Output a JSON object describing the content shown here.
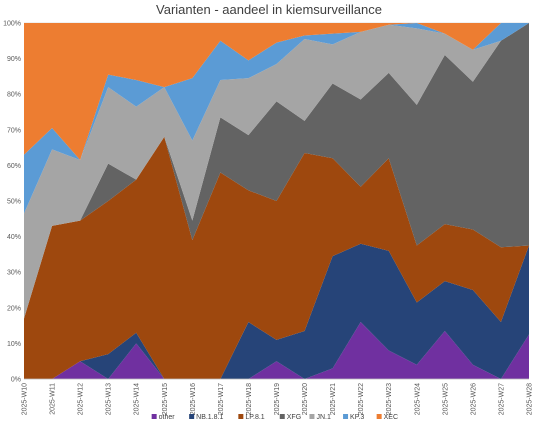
{
  "chart_data": {
    "type": "area",
    "stacked": true,
    "normalized": true,
    "title": "Varianten - aandeel in kiemsurveillance",
    "xlabel": "",
    "ylabel": "",
    "ylim": [
      0,
      100
    ],
    "y_ticks": [
      "0%",
      "10%",
      "20%",
      "30%",
      "40%",
      "50%",
      "60%",
      "70%",
      "80%",
      "90%",
      "100%"
    ],
    "grid": true,
    "legend_position": "bottom",
    "categories": [
      "2025-W10",
      "2025-W11",
      "2025-W12",
      "2025-W13",
      "2025-W14",
      "2025-W15",
      "2025-W16",
      "2025-W17",
      "2025-W18",
      "2025-W19",
      "2025-W20",
      "2025-W21",
      "2025-W22",
      "2025-W23",
      "2025-W24",
      "2025-W25",
      "2025-W26",
      "2025-W27",
      "2025-W28"
    ],
    "series": [
      {
        "name": "other",
        "color": "#7030A0",
        "values": [
          0,
          0,
          5,
          0,
          10,
          0,
          0,
          0,
          0,
          5,
          0,
          3,
          16,
          8,
          4,
          13.5,
          4,
          0,
          12.5
        ]
      },
      {
        "name": "NB.1.8.1",
        "color": "#264478",
        "values": [
          0,
          0,
          0,
          7,
          3,
          0,
          0,
          0,
          16,
          6,
          13.5,
          31.5,
          22,
          28,
          17.5,
          14,
          21,
          16,
          25
        ]
      },
      {
        "name": "LP.8.1",
        "color": "#9E480E",
        "values": [
          17,
          43,
          39.5,
          43,
          43,
          68,
          39,
          58,
          37,
          39,
          50,
          27.5,
          16,
          26,
          16,
          16,
          17,
          21,
          0
        ]
      },
      {
        "name": "XFG",
        "color": "#636363",
        "values": [
          0,
          0,
          0,
          10.5,
          0,
          0,
          5.5,
          15.5,
          15.5,
          28,
          9,
          21,
          24.5,
          24,
          39.5,
          47.5,
          41.5,
          58,
          62.5
        ]
      },
      {
        "name": "JN.1",
        "color": "#A5A5A5",
        "values": [
          29.5,
          21.5,
          17,
          21.5,
          20.5,
          14,
          22.5,
          10.5,
          16,
          10.5,
          23,
          11,
          19,
          13.5,
          21.5,
          6,
          9,
          0,
          0
        ]
      },
      {
        "name": "KP.3",
        "color": "#5B9BD5",
        "values": [
          16.5,
          6,
          0,
          3.5,
          7.5,
          0,
          17.5,
          11,
          5,
          6,
          1,
          3,
          0,
          0,
          1.5,
          0,
          0,
          5,
          0
        ]
      },
      {
        "name": "XEC",
        "color": "#ED7D31",
        "values": [
          37,
          29.5,
          38.5,
          14.5,
          16,
          18,
          15.5,
          5,
          10.5,
          5.5,
          3.5,
          3,
          2.5,
          0.5,
          0,
          3,
          7.5,
          0,
          0
        ]
      }
    ]
  }
}
